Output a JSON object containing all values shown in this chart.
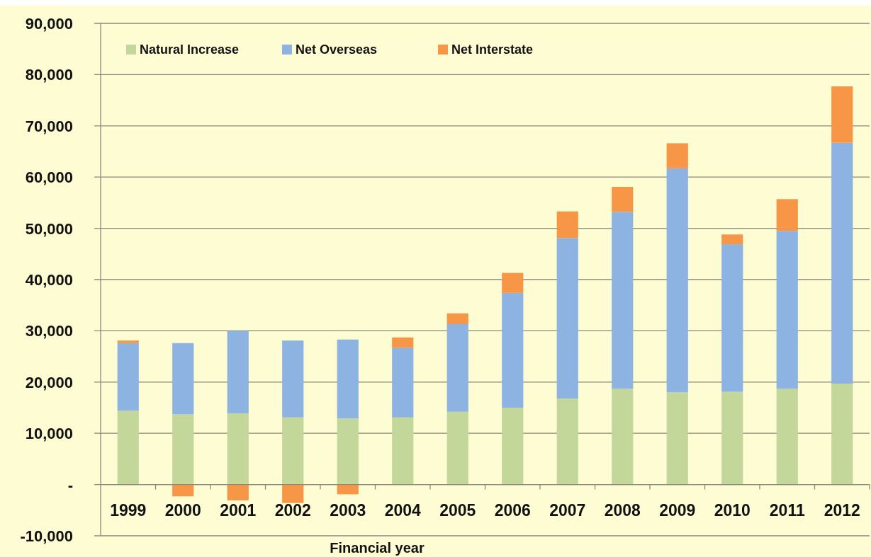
{
  "chart_data": {
    "type": "bar",
    "stacked": true,
    "xlabel": "Financial year",
    "categories": [
      "1999",
      "2000",
      "2001",
      "2002",
      "2003",
      "2004",
      "2005",
      "2006",
      "2007",
      "2008",
      "2009",
      "2010",
      "2011",
      "2012"
    ],
    "series": [
      {
        "name": "Natural Increase",
        "color": "#c4d79b",
        "values": [
          14400,
          13700,
          13900,
          13100,
          12900,
          13100,
          14200,
          15000,
          16800,
          18700,
          18000,
          18100,
          18700,
          19700
        ]
      },
      {
        "name": "Net Overseas",
        "color": "#8db3e2",
        "values": [
          13200,
          13900,
          16100,
          15000,
          15400,
          13600,
          17100,
          22400,
          31300,
          34500,
          43700,
          28800,
          30800,
          47000
        ]
      },
      {
        "name": "Net Interstate",
        "color": "#f79646",
        "values": [
          500,
          -2300,
          -3100,
          -3600,
          -1900,
          2000,
          2100,
          3900,
          5200,
          4900,
          4900,
          1900,
          6200,
          11000
        ]
      }
    ],
    "ylim": [
      -10000,
      90000
    ],
    "yticks": [
      {
        "value": -10000,
        "label": "-10,000"
      },
      {
        "value": 0,
        "label": "-"
      },
      {
        "value": 10000,
        "label": "10,000"
      },
      {
        "value": 20000,
        "label": "20,000"
      },
      {
        "value": 30000,
        "label": "30,000"
      },
      {
        "value": 40000,
        "label": "40,000"
      },
      {
        "value": 50000,
        "label": "50,000"
      },
      {
        "value": 60000,
        "label": "60,000"
      },
      {
        "value": 70000,
        "label": "70,000"
      },
      {
        "value": 80000,
        "label": "80,000"
      },
      {
        "value": 90000,
        "label": "90,000"
      }
    ],
    "grid": "y",
    "legend": "top left"
  }
}
